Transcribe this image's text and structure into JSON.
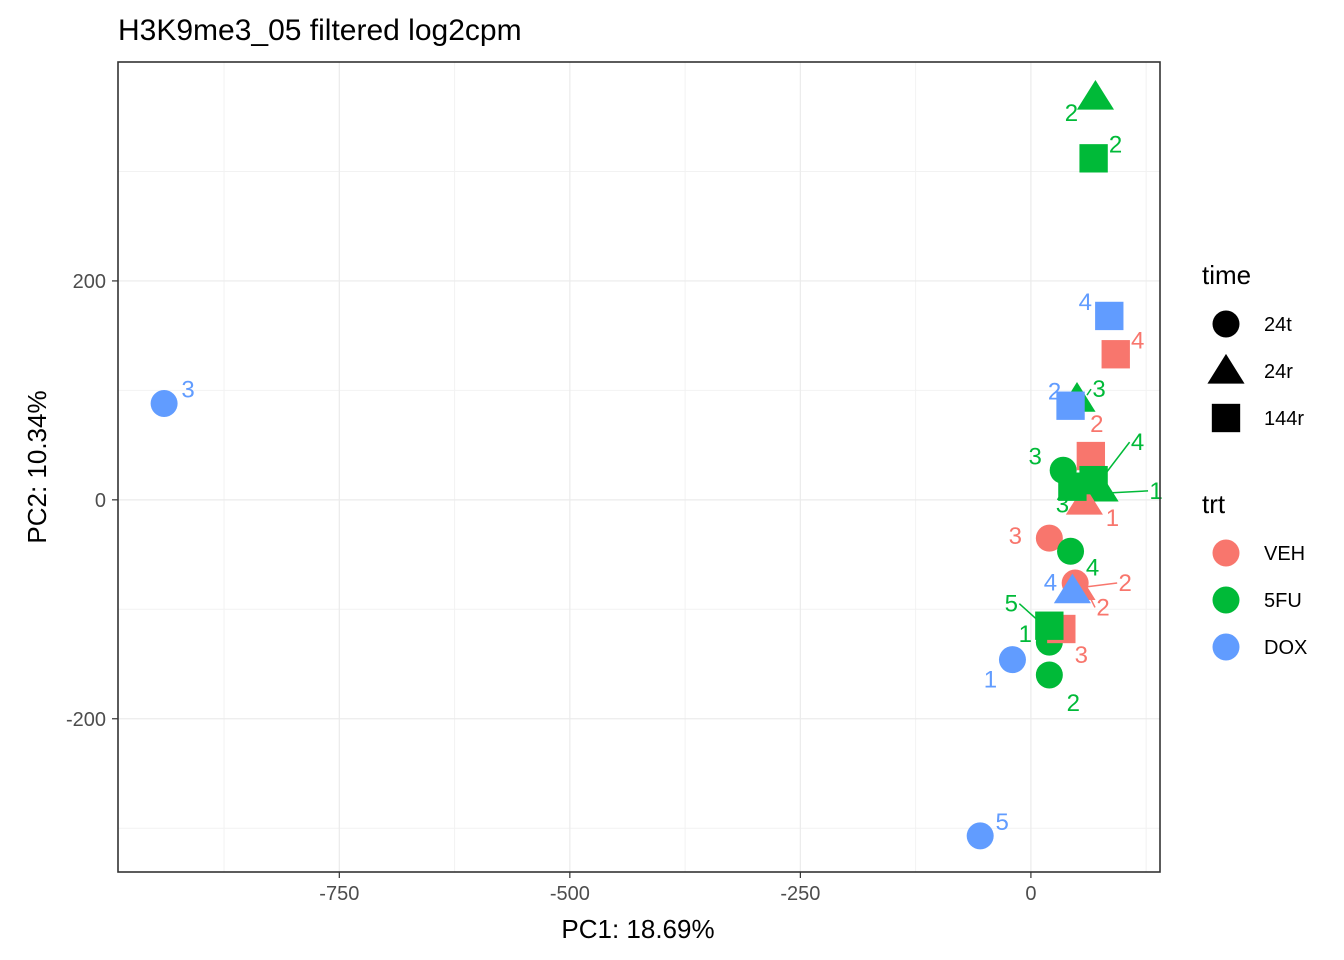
{
  "chart_data": {
    "type": "scatter",
    "title": "H3K9me3_05 filtered log2cpm",
    "xlabel": "PC1: 18.69%",
    "ylabel": "PC2: 10.34%",
    "xlim": [
      -990,
      140
    ],
    "ylim": [
      -340,
      400
    ],
    "x_ticks": [
      -750,
      -500,
      -250,
      0
    ],
    "x_tick_labels": [
      "-750",
      "-500",
      "-250",
      "0"
    ],
    "y_ticks": [
      -200,
      0,
      200
    ],
    "y_tick_labels": [
      "-200",
      "0",
      "200"
    ],
    "grid": true,
    "legend_placement": "right",
    "colors": {
      "VEH": "#F8766D",
      "5FU": "#00BA38",
      "DOX": "#619CFF"
    },
    "legends": [
      {
        "title": "time",
        "entries": [
          {
            "label": "24t",
            "shape": "circle"
          },
          {
            "label": "24r",
            "shape": "triangle"
          },
          {
            "label": "144r",
            "shape": "square"
          }
        ]
      },
      {
        "title": "trt",
        "entries": [
          {
            "label": "VEH",
            "shape": "circle",
            "color": "VEH"
          },
          {
            "label": "5FU",
            "shape": "circle",
            "color": "5FU"
          },
          {
            "label": "DOX",
            "shape": "circle",
            "color": "DOX"
          }
        ]
      }
    ],
    "points": [
      {
        "x": -940,
        "y": 88,
        "trt": "DOX",
        "time": "24t",
        "label": "3"
      },
      {
        "x": -55,
        "y": -307,
        "trt": "DOX",
        "time": "24t",
        "label": "5"
      },
      {
        "x": -20,
        "y": -146,
        "trt": "DOX",
        "time": "24t",
        "label": "1"
      },
      {
        "x": 20,
        "y": -35,
        "trt": "VEH",
        "time": "24t",
        "label": "3"
      },
      {
        "x": 48,
        "y": -76,
        "trt": "VEH",
        "time": "24t",
        "label": "2"
      },
      {
        "x": 35,
        "y": 27,
        "trt": "5FU",
        "time": "24t",
        "label": "3"
      },
      {
        "x": 43,
        "y": -47,
        "trt": "5FU",
        "time": "24t",
        "label": "4"
      },
      {
        "x": 20,
        "y": -130,
        "trt": "5FU",
        "time": "24t",
        "label": "1"
      },
      {
        "x": 20,
        "y": -160,
        "trt": "5FU",
        "time": "24t",
        "label": "2"
      },
      {
        "x": 70,
        "y": 368,
        "trt": "5FU",
        "time": "24r",
        "label": "2"
      },
      {
        "x": 50,
        "y": 92,
        "trt": "5FU",
        "time": "24r",
        "label": "3"
      },
      {
        "x": 75,
        "y": 10,
        "trt": "5FU",
        "time": "24r",
        "label": "1"
      },
      {
        "x": 58,
        "y": -2,
        "trt": "VEH",
        "time": "24r",
        "label": "1"
      },
      {
        "x": 50,
        "y": -80,
        "trt": "VEH",
        "time": "24r",
        "label": "2"
      },
      {
        "x": 45,
        "y": -83,
        "trt": "DOX",
        "time": "24r",
        "label": "4"
      },
      {
        "x": 68,
        "y": 312,
        "trt": "5FU",
        "time": "144r",
        "label": "2"
      },
      {
        "x": 85,
        "y": 168,
        "trt": "DOX",
        "time": "144r",
        "label": "4"
      },
      {
        "x": 92,
        "y": 133,
        "trt": "VEH",
        "time": "144r",
        "label": "4"
      },
      {
        "x": 43,
        "y": 86,
        "trt": "DOX",
        "time": "144r",
        "label": "2"
      },
      {
        "x": 65,
        "y": 40,
        "trt": "VEH",
        "time": "144r",
        "label": "2"
      },
      {
        "x": 68,
        "y": 18,
        "trt": "5FU",
        "time": "144r",
        "label": "4"
      },
      {
        "x": 45,
        "y": 12,
        "trt": "5FU",
        "time": "144r",
        "label": "3"
      },
      {
        "x": 33,
        "y": -118,
        "trt": "VEH",
        "time": "144r",
        "label": "3"
      },
      {
        "x": 20,
        "y": -115,
        "trt": "5FU",
        "time": "144r",
        "label": "5"
      }
    ]
  }
}
